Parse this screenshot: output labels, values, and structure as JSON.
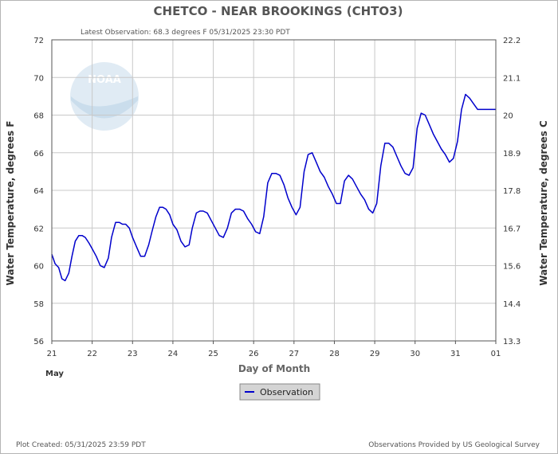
{
  "chart_data": {
    "type": "line",
    "title": "CHETCO - NEAR BROOKINGS  (CHTO3)",
    "subtitle": "Latest Observation: 68.3 degrees F  05/31/2025 23:30 PDT",
    "xlabel": "Day of Month",
    "xlabel_month": "May",
    "ylabel_left": "Water Temperature, degrees F",
    "ylabel_right": "Water Temperature, degrees C",
    "xlim": [
      21,
      32
    ],
    "ylim": [
      56,
      72
    ],
    "x_ticks": [
      "21",
      "22",
      "23",
      "24",
      "25",
      "26",
      "27",
      "28",
      "29",
      "30",
      "31",
      "01"
    ],
    "y_ticks_left": [
      "56",
      "58",
      "60",
      "62",
      "64",
      "66",
      "68",
      "70",
      "72"
    ],
    "y_ticks_right": [
      "13.3",
      "14.4",
      "15.6",
      "16.7",
      "17.8",
      "18.9",
      "20",
      "21.1",
      "22.2"
    ],
    "grid": true,
    "legend_position": "bottom-center",
    "series": [
      {
        "name": "Observation",
        "color": "#0000cc",
        "x": [
          21.0,
          21.08,
          21.17,
          21.25,
          21.33,
          21.42,
          21.5,
          21.58,
          21.67,
          21.75,
          21.83,
          21.92,
          22.0,
          22.1,
          22.2,
          22.3,
          22.4,
          22.48,
          22.58,
          22.67,
          22.75,
          22.83,
          22.92,
          23.0,
          23.1,
          23.2,
          23.3,
          23.4,
          23.48,
          23.58,
          23.67,
          23.75,
          23.83,
          23.92,
          24.0,
          24.1,
          24.2,
          24.3,
          24.4,
          24.48,
          24.58,
          24.67,
          24.75,
          24.85,
          24.95,
          25.05,
          25.15,
          25.25,
          25.35,
          25.45,
          25.55,
          25.65,
          25.75,
          25.85,
          25.95,
          26.05,
          26.15,
          26.25,
          26.35,
          26.45,
          26.55,
          26.65,
          26.75,
          26.85,
          26.95,
          27.05,
          27.15,
          27.25,
          27.35,
          27.45,
          27.55,
          27.65,
          27.75,
          27.85,
          27.95,
          28.05,
          28.15,
          28.25,
          28.35,
          28.45,
          28.55,
          28.65,
          28.75,
          28.85,
          28.95,
          29.05,
          29.15,
          29.25,
          29.35,
          29.45,
          29.55,
          29.65,
          29.75,
          29.85,
          29.95,
          30.05,
          30.15,
          30.25,
          30.35,
          30.45,
          30.55,
          30.65,
          30.75,
          30.85,
          30.95,
          31.05,
          31.15,
          31.25,
          31.35,
          31.45,
          31.55,
          31.65,
          31.75,
          31.85,
          31.95,
          32.0
        ],
        "values": [
          60.6,
          60.1,
          59.9,
          59.3,
          59.2,
          59.6,
          60.5,
          61.3,
          61.6,
          61.6,
          61.5,
          61.2,
          60.9,
          60.5,
          60.0,
          59.9,
          60.4,
          61.5,
          62.3,
          62.3,
          62.2,
          62.2,
          62.0,
          61.5,
          61.0,
          60.5,
          60.5,
          61.1,
          61.8,
          62.6,
          63.1,
          63.1,
          63.0,
          62.7,
          62.2,
          61.9,
          61.3,
          61.0,
          61.1,
          62.0,
          62.8,
          62.9,
          62.9,
          62.8,
          62.4,
          62.0,
          61.6,
          61.5,
          62.0,
          62.8,
          63.0,
          63.0,
          62.9,
          62.5,
          62.2,
          61.8,
          61.7,
          62.6,
          64.4,
          64.9,
          64.9,
          64.8,
          64.3,
          63.6,
          63.1,
          62.7,
          63.1,
          65.0,
          65.9,
          66.0,
          65.5,
          65.0,
          64.7,
          64.2,
          63.8,
          63.3,
          63.3,
          64.5,
          64.8,
          64.6,
          64.2,
          63.8,
          63.5,
          63.0,
          62.8,
          63.3,
          65.3,
          66.5,
          66.5,
          66.3,
          65.8,
          65.3,
          64.9,
          64.8,
          65.2,
          67.3,
          68.1,
          68.0,
          67.5,
          67.0,
          66.6,
          66.2,
          65.9,
          65.5,
          65.7,
          66.6,
          68.3,
          69.1,
          68.9,
          68.6,
          68.3,
          68.3,
          68.3,
          68.3,
          68.3,
          68.3
        ]
      }
    ]
  },
  "footer": {
    "left": "Plot Created: 05/31/2025 23:59 PDT",
    "right": "Observations Provided by US Geological Survey"
  },
  "logo": {
    "text": "NOAA"
  }
}
